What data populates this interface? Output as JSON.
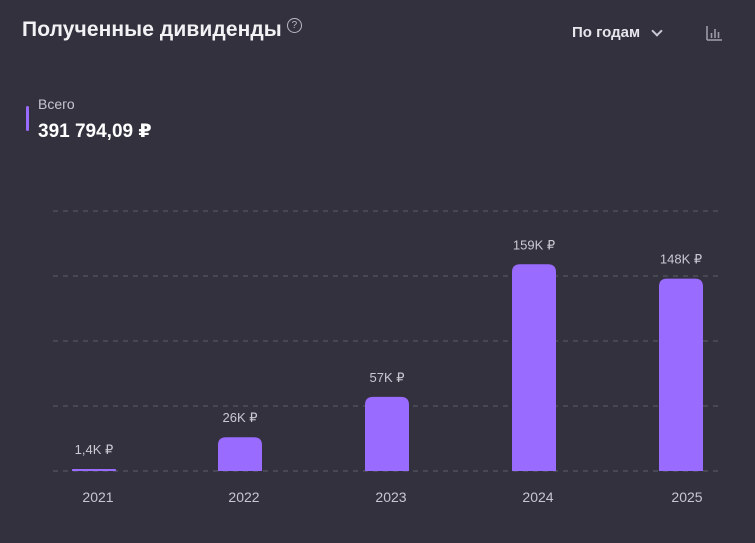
{
  "header": {
    "title": "Полученные дивиденды",
    "help_icon": "question-circle-icon",
    "period_select": {
      "selected": "По годам",
      "icon": "chevron-down-icon"
    },
    "chart_view_icon": "bar-chart-icon"
  },
  "summary": {
    "label": "Всего",
    "value": "391 794,09 ₽",
    "accent_color": "#9a6bff"
  },
  "chart_data": {
    "type": "bar",
    "categories": [
      "2021",
      "2022",
      "2023",
      "2024",
      "2025"
    ],
    "values": [
      1400,
      26000,
      57000,
      159000,
      148000
    ],
    "data_labels": [
      "1,4K ₽",
      "26K ₽",
      "57K ₽",
      "159K ₽",
      "148K ₽"
    ],
    "title": "",
    "xlabel": "",
    "ylabel": "",
    "ylim": [
      0,
      200000
    ],
    "grid": true,
    "bar_color": "#9a6bff"
  }
}
